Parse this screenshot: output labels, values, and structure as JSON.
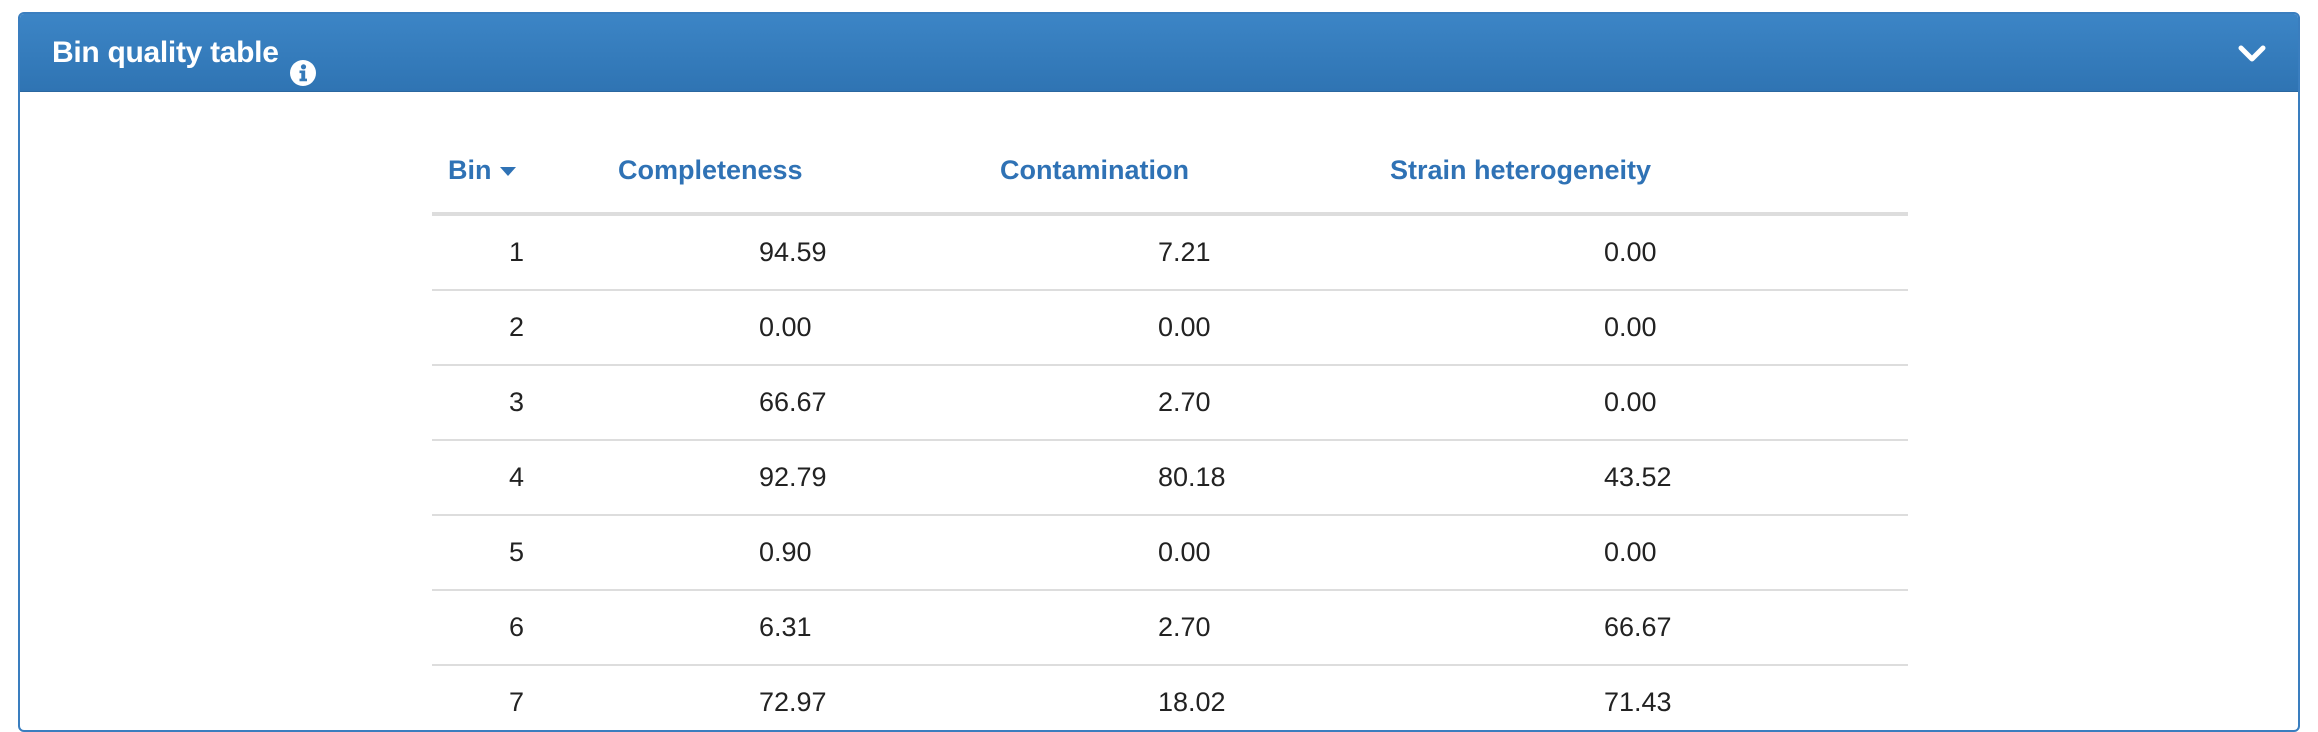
{
  "panel": {
    "title": "Bin quality table",
    "info_icon": "info-circle-icon",
    "collapse_icon": "chevron-down-icon"
  },
  "colors": {
    "header_bg": "#337ab7",
    "link_blue": "#2f72b5"
  },
  "table": {
    "columns": [
      {
        "label": "Bin",
        "sorted": "descending"
      },
      {
        "label": "Completeness"
      },
      {
        "label": "Contamination"
      },
      {
        "label": "Strain heterogeneity"
      }
    ],
    "rows": [
      {
        "bin": "1",
        "completeness": "94.59",
        "contamination": "7.21",
        "strain": "0.00"
      },
      {
        "bin": "2",
        "completeness": "0.00",
        "contamination": "0.00",
        "strain": "0.00"
      },
      {
        "bin": "3",
        "completeness": "66.67",
        "contamination": "2.70",
        "strain": "0.00"
      },
      {
        "bin": "4",
        "completeness": "92.79",
        "contamination": "80.18",
        "strain": "43.52"
      },
      {
        "bin": "5",
        "completeness": "0.90",
        "contamination": "0.00",
        "strain": "0.00"
      },
      {
        "bin": "6",
        "completeness": "6.31",
        "contamination": "2.70",
        "strain": "66.67"
      },
      {
        "bin": "7",
        "completeness": "72.97",
        "contamination": "18.02",
        "strain": "71.43"
      }
    ]
  }
}
